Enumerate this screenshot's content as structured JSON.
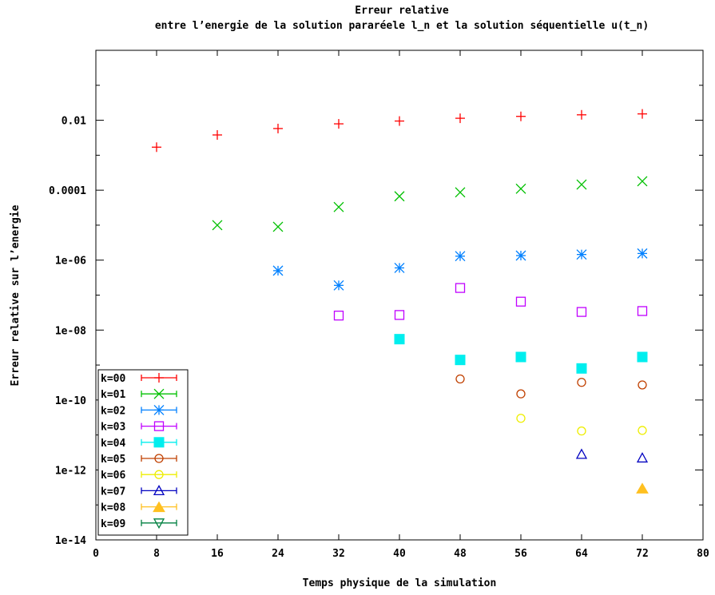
{
  "chart_data": {
    "type": "scatter",
    "title": "Erreur relative",
    "subtitle": "entre l’energie de la solution pararéele l_n et la solution séquentielle u(t_n)",
    "xlabel": "Temps physique de la simulation",
    "ylabel": "Erreur relative sur l’energie",
    "xlim": [
      0,
      80
    ],
    "ylim": [
      1e-14,
      1
    ],
    "yscale": "log",
    "grid": false,
    "legend_position": "bottom-left",
    "x_ticks": [
      "0",
      "8",
      "16",
      "24",
      "32",
      "40",
      "48",
      "56",
      "64",
      "72",
      "80"
    ],
    "y_ticks": [
      "0.01",
      "0.0001",
      "1e-06",
      "1e-08",
      "1e-10",
      "1e-12",
      "1e-14"
    ],
    "series": [
      {
        "name": "k=00",
        "color": "#ff0000",
        "marker": "plus",
        "points": [
          [
            8,
            0.0017
          ],
          [
            16,
            0.0038
          ],
          [
            24,
            0.0058
          ],
          [
            32,
            0.0079
          ],
          [
            40,
            0.0095
          ],
          [
            48,
            0.0114
          ],
          [
            56,
            0.0129
          ],
          [
            64,
            0.0143
          ],
          [
            72,
            0.0152
          ]
        ]
      },
      {
        "name": "k=01",
        "color": "#00c000",
        "marker": "cross",
        "points": [
          [
            16,
            1e-05
          ],
          [
            24,
            9e-06
          ],
          [
            32,
            3.3e-05
          ],
          [
            40,
            6.7e-05
          ],
          [
            48,
            8.7e-05
          ],
          [
            56,
            0.00011
          ],
          [
            64,
            0.000145
          ],
          [
            72,
            0.00018
          ]
        ]
      },
      {
        "name": "k=02",
        "color": "#0080ff",
        "marker": "star",
        "points": [
          [
            24,
            5e-07
          ],
          [
            32,
            1.9e-07
          ],
          [
            40,
            6e-07
          ],
          [
            48,
            1.3e-06
          ],
          [
            56,
            1.35e-06
          ],
          [
            64,
            1.45e-06
          ],
          [
            72,
            1.55e-06
          ]
        ]
      },
      {
        "name": "k=03",
        "color": "#c000ff",
        "marker": "box",
        "points": [
          [
            32,
            2.6e-08
          ],
          [
            40,
            2.7e-08
          ],
          [
            48,
            1.6e-07
          ],
          [
            56,
            6.5e-08
          ],
          [
            64,
            3.3e-08
          ],
          [
            72,
            3.5e-08
          ]
        ]
      },
      {
        "name": "k=04",
        "color": "#00eeee",
        "marker": "filledbox",
        "points": [
          [
            40,
            5.5e-09
          ],
          [
            48,
            1.4e-09
          ],
          [
            56,
            1.7e-09
          ],
          [
            64,
            8e-10
          ],
          [
            72,
            1.7e-09
          ]
        ]
      },
      {
        "name": "k=05",
        "color": "#c04000",
        "marker": "circle",
        "points": [
          [
            48,
            4e-10
          ],
          [
            56,
            1.5e-10
          ],
          [
            64,
            3.2e-10
          ],
          [
            72,
            2.7e-10
          ]
        ]
      },
      {
        "name": "k=06",
        "color": "#eeee00",
        "marker": "circle",
        "points": [
          [
            56,
            3e-11
          ],
          [
            64,
            1.3e-11
          ],
          [
            72,
            1.35e-11
          ]
        ]
      },
      {
        "name": "k=07",
        "color": "#0000c0",
        "marker": "triangle",
        "points": [
          [
            64,
            2.8e-12
          ],
          [
            72,
            2.2e-12
          ]
        ]
      },
      {
        "name": "k=08",
        "color": "#ffc020",
        "marker": "filledtriangle",
        "points": [
          [
            72,
            3e-13
          ]
        ]
      },
      {
        "name": "k=09",
        "color": "#008040",
        "marker": "invtriangle",
        "points": []
      }
    ]
  }
}
